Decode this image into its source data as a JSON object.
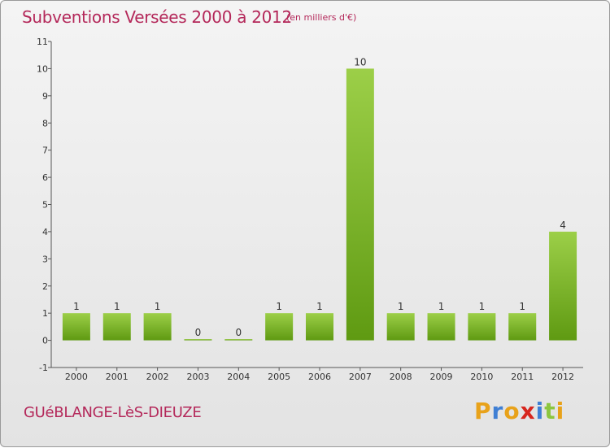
{
  "header": {
    "title": "Subventions Versées 2000 à 2012",
    "unit": "(en milliers d'€)"
  },
  "footer": {
    "commune": "GUéBLANGE-LèS-DIEUZE",
    "logo_text": "Proxiti"
  },
  "colors": {
    "accent": "#b4285a",
    "bar_light": "#9ccf48",
    "bar_dark": "#5f9a12",
    "logo_letters": [
      "#e8a21a",
      "#3f7fd4",
      "#e8a21a",
      "#d7261e",
      "#3f7fd4",
      "#8cc63f",
      "#e8a21a"
    ]
  },
  "chart_data": {
    "type": "bar",
    "title": "Subventions Versées 2000 à 2012",
    "subtitle": "(en milliers d'€)",
    "categories": [
      "2000",
      "2001",
      "2002",
      "2003",
      "2004",
      "2005",
      "2006",
      "2007",
      "2008",
      "2009",
      "2010",
      "2011",
      "2012"
    ],
    "values": [
      1,
      1,
      1,
      0,
      0,
      1,
      1,
      10,
      1,
      1,
      1,
      1,
      4
    ],
    "ylim": [
      -1,
      11
    ],
    "yticks": [
      -1,
      0,
      1,
      2,
      3,
      4,
      5,
      6,
      7,
      8,
      9,
      10,
      11
    ],
    "grid": false,
    "xlabel": "",
    "ylabel": ""
  }
}
